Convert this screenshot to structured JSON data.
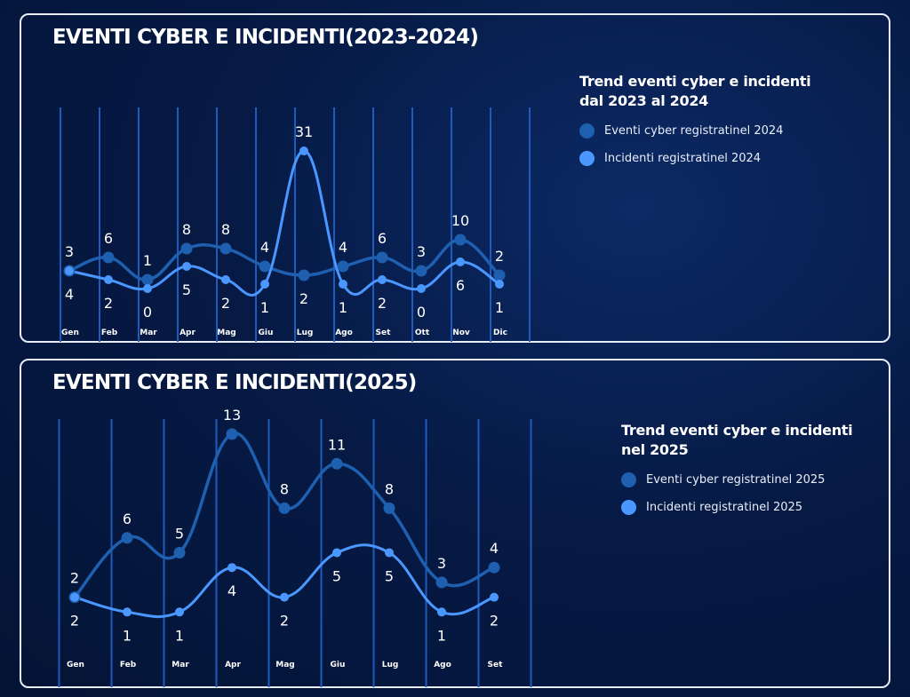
{
  "colors": {
    "events": "#1f5fb0",
    "incidents": "#4a98ff",
    "grid": "#1e5bbf"
  },
  "panels": [
    {
      "title": "EVENTI CYBER E INCIDENTI(2023-2024)",
      "legend": {
        "title_line1": "Trend eventi cyber e incidenti",
        "title_line2": "dal 2023 al 2024",
        "events_label": "Eventi cyber registratinel 2024",
        "incidents_label": "Incidenti registratinel 2024"
      }
    },
    {
      "title": "EVENTI CYBER E INCIDENTI(2025)",
      "legend": {
        "title_line1": "Trend eventi cyber e incidenti",
        "title_line2": "nel 2025",
        "events_label": "Eventi cyber registratinel 2025",
        "incidents_label": "Incidenti registratinel 2025"
      }
    }
  ],
  "chart_data": [
    {
      "type": "line",
      "title": "EVENTI CYBER E INCIDENTI(2023-2024)",
      "categories": [
        "Gen",
        "Feb",
        "Mar",
        "Apr",
        "Mag",
        "Giu",
        "Lug",
        "Ago",
        "Set",
        "Ott",
        "Nov",
        "Dic"
      ],
      "series": [
        {
          "name": "Eventi cyber registratinel 2024",
          "values": [
            3,
            6,
            1,
            8,
            8,
            4,
            2,
            4,
            6,
            3,
            10,
            2
          ]
        },
        {
          "name": "Incidenti registratinel 2024",
          "values": [
            4,
            2,
            0,
            5,
            2,
            1,
            31,
            1,
            2,
            0,
            6,
            1
          ]
        }
      ],
      "legend_position": "right"
    },
    {
      "type": "line",
      "title": "EVENTI CYBER E INCIDENTI(2025)",
      "categories": [
        "Gen",
        "Feb",
        "Mar",
        "Apr",
        "Mag",
        "Giu",
        "Lug",
        "Ago",
        "Set"
      ],
      "series": [
        {
          "name": "Eventi cyber registratinel 2025",
          "values": [
            2,
            6,
            5,
            13,
            8,
            11,
            8,
            3,
            4
          ]
        },
        {
          "name": "Incidenti registratinel 2025",
          "values": [
            2,
            1,
            1,
            4,
            2,
            5,
            5,
            1,
            2
          ]
        }
      ],
      "legend_position": "right"
    }
  ]
}
